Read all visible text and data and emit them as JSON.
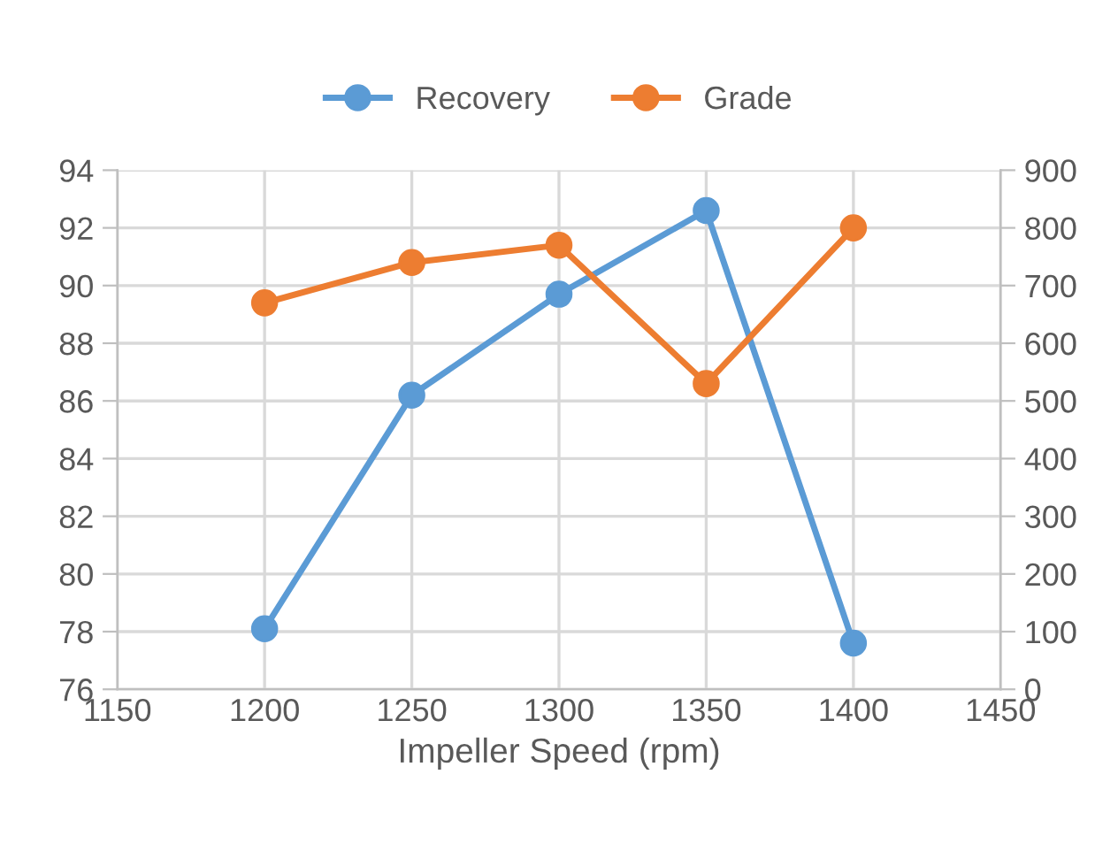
{
  "chart_data": {
    "type": "line",
    "xlabel": "Impeller Speed (rpm)",
    "x": [
      1200,
      1250,
      1300,
      1350,
      1400
    ],
    "series": [
      {
        "name": "Recovery",
        "color": "#5b9bd5",
        "values": [
          78.1,
          86.2,
          89.7,
          92.6,
          77.6
        ]
      },
      {
        "name": "Grade",
        "color": "#ed7d31",
        "values": [
          670,
          740,
          770,
          530,
          800
        ],
        "axis": "y2"
      }
    ],
    "xlim": [
      1150,
      1450
    ],
    "xticks": [
      1150,
      1200,
      1250,
      1300,
      1350,
      1400,
      1450
    ],
    "ylim": [
      76,
      94
    ],
    "yticks": [
      76,
      78,
      80,
      82,
      84,
      86,
      88,
      90,
      92,
      94
    ],
    "y2lim": [
      0,
      900
    ],
    "y2ticks": [
      0,
      100,
      200,
      300,
      400,
      500,
      600,
      700,
      800,
      900
    ],
    "grid": true,
    "legend": "top",
    "marker": "circle",
    "line_style": "solid"
  }
}
